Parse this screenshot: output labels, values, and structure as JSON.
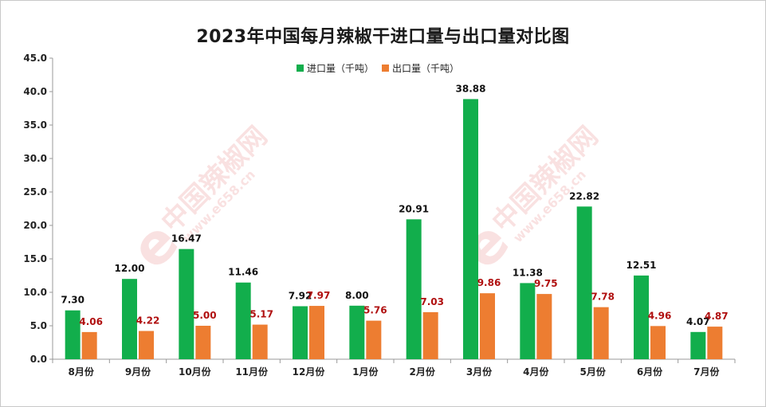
{
  "chart_data": {
    "type": "bar",
    "title": "2023年中国每月辣椒干进口量与出口量对比图",
    "categories": [
      "8月份",
      "9月份",
      "10月份",
      "11月份",
      "12月份",
      "1月份",
      "2月份",
      "3月份",
      "4月份",
      "5月份",
      "6月份",
      "7月份"
    ],
    "series": [
      {
        "name": "进口量（千吨）",
        "color": "#12ae4c",
        "label_color": "#111111",
        "values": [
          7.3,
          12.0,
          16.47,
          11.46,
          7.92,
          8.0,
          20.91,
          38.88,
          11.38,
          22.82,
          12.51,
          4.07
        ]
      },
      {
        "name": "出口量（千吨）",
        "color": "#ed7d31",
        "label_color": "#b01010",
        "values": [
          4.06,
          4.22,
          5.0,
          5.17,
          7.97,
          5.76,
          7.03,
          9.86,
          9.75,
          7.78,
          4.96,
          4.87
        ]
      }
    ],
    "ylim": [
      0,
      45
    ],
    "yticks": [
      "0.0",
      "5.0",
      "10.0",
      "15.0",
      "20.0",
      "25.0",
      "30.0",
      "35.0",
      "40.0",
      "45.0"
    ],
    "ytick_step": 5,
    "xlabel": "",
    "ylabel": "",
    "grid": false,
    "legend_position": "top"
  },
  "watermark": {
    "text": "中国辣椒网",
    "url": "www.e658.cn",
    "logo_letter": "e"
  }
}
